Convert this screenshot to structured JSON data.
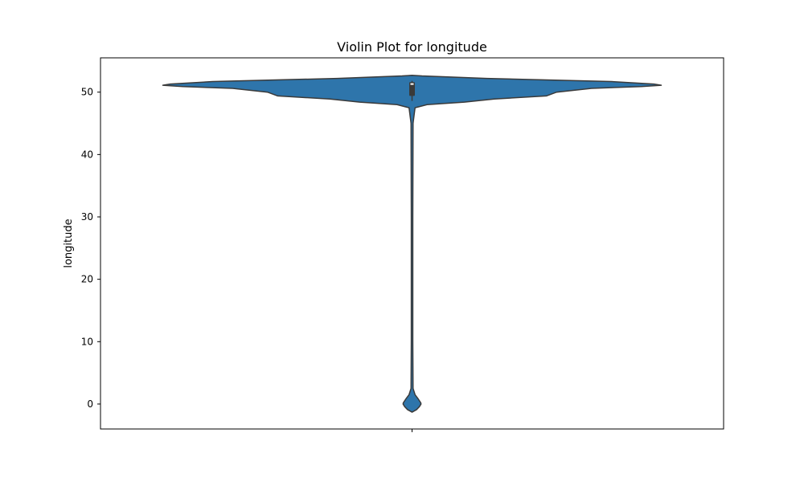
{
  "chart_data": {
    "type": "violin",
    "title": "Violin Plot for longitude",
    "xlabel": "",
    "ylabel": "longitude",
    "ylim": [
      -4,
      55.5
    ],
    "yticks": [
      0,
      10,
      20,
      30,
      40,
      50
    ],
    "grid": false,
    "color": "#2e75ab",
    "edge_color": "#3a3a3a",
    "box_color": "#3a3a3a",
    "median_color": "#ffffff",
    "density_profile": [
      {
        "y": 52.7,
        "half_width": 0.0
      },
      {
        "y": 52.6,
        "half_width": 0.04
      },
      {
        "y": 52.2,
        "half_width": 0.3
      },
      {
        "y": 51.7,
        "half_width": 0.8
      },
      {
        "y": 51.3,
        "half_width": 0.97
      },
      {
        "y": 51.1,
        "half_width": 1.0
      },
      {
        "y": 50.9,
        "half_width": 0.92
      },
      {
        "y": 50.6,
        "half_width": 0.72
      },
      {
        "y": 50.0,
        "half_width": 0.58
      },
      {
        "y": 49.4,
        "half_width": 0.54
      },
      {
        "y": 48.9,
        "half_width": 0.33
      },
      {
        "y": 48.4,
        "half_width": 0.21
      },
      {
        "y": 48.0,
        "half_width": 0.06
      },
      {
        "y": 47.5,
        "half_width": 0.012
      },
      {
        "y": 45.0,
        "half_width": 0.004
      },
      {
        "y": 30.0,
        "half_width": 0.003
      },
      {
        "y": 10.0,
        "half_width": 0.003
      },
      {
        "y": 2.5,
        "half_width": 0.004
      },
      {
        "y": 1.5,
        "half_width": 0.012
      },
      {
        "y": 0.8,
        "half_width": 0.025
      },
      {
        "y": 0.2,
        "half_width": 0.035
      },
      {
        "y": 0.0,
        "half_width": 0.036
      },
      {
        "y": -0.4,
        "half_width": 0.03
      },
      {
        "y": -0.9,
        "half_width": 0.018
      },
      {
        "y": -1.3,
        "half_width": 0.0
      }
    ],
    "box": {
      "q1": 49.4,
      "median": 51.3,
      "q3": 51.6,
      "whisker_low": 48.6,
      "whisker_high": 51.8
    }
  }
}
